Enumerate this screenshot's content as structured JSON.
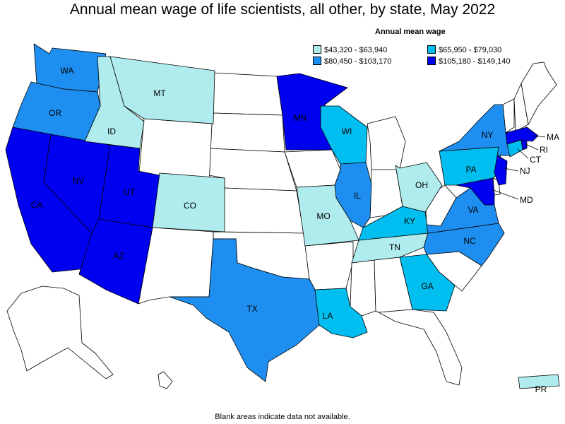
{
  "title": "Annual mean wage of life scientists, all other, by state, May 2022",
  "legend": {
    "title": "Annual mean wage",
    "items": [
      {
        "label": "$43,320 - $63,940",
        "color": "#b0ecee"
      },
      {
        "label": "$65,950 - $79,030",
        "color": "#00bff0"
      },
      {
        "label": "$80,450 - $103,170",
        "color": "#1e8ff0"
      },
      {
        "label": "$105,180 - $149,140",
        "color": "#0000f0"
      }
    ]
  },
  "note": "Blank areas indicate data not available.",
  "states": {
    "WA": "WA",
    "OR": "OR",
    "CA": "CA",
    "NV": "NV",
    "ID": "ID",
    "MT": "MT",
    "UT": "UT",
    "AZ": "AZ",
    "CO": "CO",
    "TX": "TX",
    "MN": "MN",
    "WI": "WI",
    "IL": "IL",
    "MO": "MO",
    "LA": "LA",
    "TN": "TN",
    "KY": "KY",
    "OH": "OH",
    "GA": "GA",
    "NC": "NC",
    "VA": "VA",
    "PA": "PA",
    "NY": "NY",
    "MA": "MA",
    "RI": "RI",
    "CT": "CT",
    "NJ": "NJ",
    "MD": "MD",
    "PR": "PR"
  }
}
